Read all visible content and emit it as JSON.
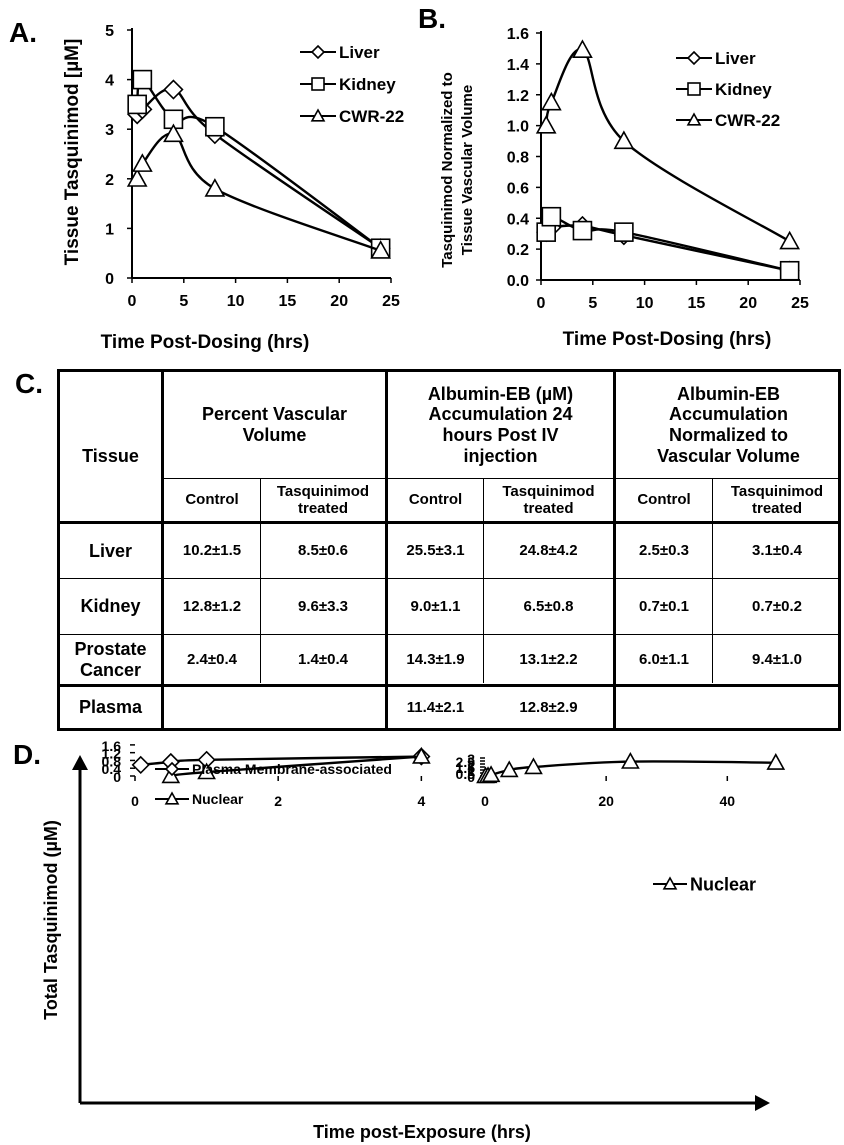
{
  "panel_labels": {
    "a": "A.",
    "b": "B.",
    "c": "C.",
    "d": "D."
  },
  "chart_data": [
    {
      "type": "line",
      "panel": "A.",
      "xlabel": "Time Post-Dosing (hrs)",
      "ylabel": "Tissue Tasquinimod [µM]",
      "xlim": [
        0,
        25
      ],
      "ylim": [
        0,
        5
      ],
      "xticks": [
        0,
        5,
        10,
        15,
        20,
        25
      ],
      "yticks": [
        0,
        1,
        2,
        3,
        4,
        5
      ],
      "legend_position": "top-right",
      "series": [
        {
          "name": "Liver",
          "marker": "diamond",
          "x": [
            0.5,
            1,
            4,
            8,
            24
          ],
          "y": [
            3.3,
            3.4,
            3.8,
            2.9,
            0.6
          ]
        },
        {
          "name": "Kidney",
          "marker": "square",
          "x": [
            0.5,
            1,
            4,
            8,
            24
          ],
          "y": [
            3.5,
            4.0,
            3.2,
            3.05,
            0.6
          ]
        },
        {
          "name": "CWR-22",
          "marker": "triangle",
          "x": [
            0.5,
            1,
            4,
            8,
            24
          ],
          "y": [
            2.0,
            2.3,
            2.9,
            1.8,
            0.55
          ]
        }
      ]
    },
    {
      "type": "line",
      "panel": "B.",
      "xlabel": "Time Post-Dosing  (hrs)",
      "ylabel_lines": [
        "Tasquinimod Normalized to",
        "Tissue Vascular Volume"
      ],
      "xlim": [
        0,
        25
      ],
      "ylim": [
        0,
        1.6
      ],
      "xticks": [
        0,
        5,
        10,
        15,
        20,
        25
      ],
      "yticks": [
        0,
        0.2,
        0.4,
        0.6,
        0.8,
        1.0,
        1.2,
        1.4,
        1.6
      ],
      "ytick_labels": [
        "0.0",
        "0.2",
        "0.4",
        "0.6",
        "0.8",
        "1.0",
        "1.2",
        "1.4",
        "1.6"
      ],
      "legend_position": "top-right",
      "series": [
        {
          "name": "Liver",
          "marker": "diamond",
          "x": [
            0.5,
            1,
            4,
            8,
            24
          ],
          "y": [
            0.31,
            0.34,
            0.35,
            0.29,
            0.06
          ]
        },
        {
          "name": "Kidney",
          "marker": "square",
          "x": [
            0.5,
            1,
            4,
            8,
            24
          ],
          "y": [
            0.31,
            0.41,
            0.32,
            0.31,
            0.06
          ]
        },
        {
          "name": "CWR-22",
          "marker": "triangle",
          "x": [
            0.5,
            1,
            4,
            8,
            24
          ],
          "y": [
            1.0,
            1.15,
            1.49,
            0.9,
            0.25
          ]
        }
      ]
    },
    {
      "type": "table",
      "panel": "C.",
      "header_tissue": "Tissue",
      "groups": [
        "Percent Vascular Volume",
        "Albumin-EB (µM) Accumulation 24 hours  Post IV injection",
        "Albumin-EB Accumulation Normalized to Vascular Volume"
      ],
      "sub_headers": [
        "Control",
        "Tasquinimod treated"
      ],
      "rows": [
        {
          "tissue": "Liver",
          "values": [
            "10.2±1.5",
            "8.5±0.6",
            "25.5±3.1",
            "24.8±4.2",
            "2.5±0.3",
            "3.1±0.4"
          ]
        },
        {
          "tissue": "Kidney",
          "values": [
            "12.8±1.2",
            "9.6±3.3",
            "9.0±1.1",
            "6.5±0.8",
            "0.7±0.1",
            "0.7±0.2"
          ]
        },
        {
          "tissue": "Prostate Cancer",
          "values": [
            "2.4±0.4",
            "1.4±0.4",
            "14.3±1.9",
            "13.1±2.2",
            "6.0±1.1",
            "9.4±1.0"
          ]
        },
        {
          "tissue": "Plasma",
          "values": [
            "",
            "",
            "11.4±2.1",
            "12.8±2.9",
            "",
            ""
          ]
        }
      ]
    },
    {
      "type": "line",
      "panel": "D. left",
      "ylabel": "Total Tasquinimod (µM)",
      "xlim": [
        0,
        4.4
      ],
      "ylim": [
        0,
        1.8
      ],
      "xticks": [
        0,
        2,
        4
      ],
      "yticks": [
        0,
        0.4,
        0.8,
        1.2,
        1.6
      ],
      "legend_position": "top-left",
      "series": [
        {
          "name": "Plasma Membrane-associated",
          "marker": "diamond",
          "x": [
            0.08,
            0.5,
            1,
            4
          ],
          "y": [
            0.57,
            0.72,
            0.83,
            1.0
          ],
          "err": [
            0.1,
            0.1,
            0.1,
            0.2
          ]
        },
        {
          "name": "Nuclear",
          "marker": "triangle",
          "x": [
            0.5,
            1,
            4
          ],
          "y": [
            0.0,
            0.2,
            1.0
          ],
          "err": [
            0,
            0,
            0.1
          ]
        }
      ]
    },
    {
      "type": "line",
      "panel": "D. right",
      "xlim": [
        0,
        52
      ],
      "ylim": [
        0,
        3
      ],
      "xticks": [
        0,
        20,
        40
      ],
      "yticks": [
        0,
        0.5,
        1,
        1.5,
        2,
        2.5,
        3
      ],
      "legend_position": "center-right",
      "series": [
        {
          "name": "Nuclear",
          "marker": "triangle",
          "x": [
            0.08,
            0.5,
            1,
            4,
            8,
            24,
            48
          ],
          "y": [
            0.0,
            0.02,
            0.18,
            1.0,
            1.5,
            2.4,
            2.22
          ],
          "err": [
            0,
            0,
            0.05,
            0.1,
            0.2,
            0.3,
            0.2
          ]
        }
      ]
    }
  ],
  "shared_xlabel_d": "Time post-Exposure (hrs)"
}
